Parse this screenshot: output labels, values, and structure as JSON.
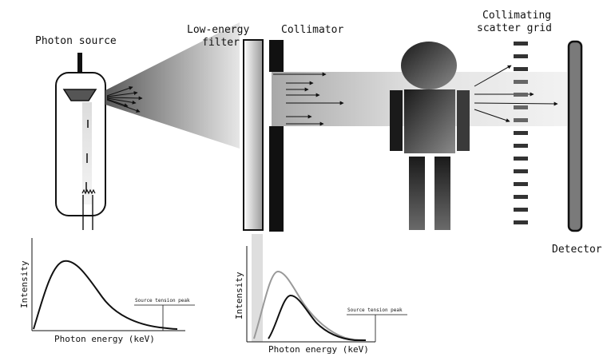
{
  "labels": {
    "photon_source": "Photon source",
    "low_energy_filter_line1": "Low-energy",
    "low_energy_filter_line2": "filter",
    "collimator": "Collimator",
    "scatter_grid_line1": "Collimating",
    "scatter_grid_line2": "scatter grid",
    "detector": "Detector"
  },
  "chart_left": {
    "ylabel": "Intensity",
    "xlabel": "Photon energy (keV)",
    "annotation": "Source tension peak"
  },
  "chart_right": {
    "ylabel": "Intensity",
    "xlabel": "Photon energy (keV)",
    "annotation": "Source tension peak"
  },
  "colors": {
    "ink": "#111111",
    "detector": "#7a7a7a",
    "beam": "#c8c8c8",
    "unfiltered_curve": "#999999",
    "filtered_curve": "#111111"
  }
}
